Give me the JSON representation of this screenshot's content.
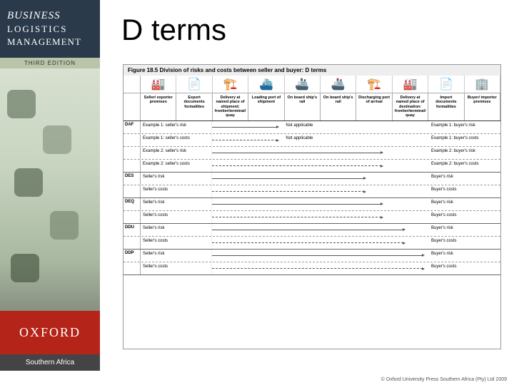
{
  "sidebar": {
    "title_line1": "BUSINESS",
    "title_line2": "LOGISTICS",
    "title_line3": "MANAGEMENT",
    "edition": "THIRD EDITION",
    "publisher": "OXFORD",
    "region": "Southern Africa"
  },
  "slide": {
    "title": "D terms"
  },
  "figure": {
    "caption": "Figure 18.5 Division of risks and costs between seller and buyer: D terms",
    "icons": [
      "🏭",
      "📄",
      "🏗️",
      "⛴️",
      "🚢",
      "🚢",
      "🏗️",
      "🏭",
      "📄",
      "🏢"
    ],
    "headers": [
      "",
      "Seller/ exporter premises",
      "Export documents formalities",
      "Delivery at named place of shipment: frontier/terminal/ quay",
      "Loading port of shipment",
      "On board ship's rail",
      "On board ship's rail",
      "Discharging port of arrival",
      "Delivery at named place of destination: frontier/terminal/ quay",
      "Import documents formalities",
      "Buyer/ importer premises"
    ],
    "na_text": "Not applicable",
    "terms": [
      {
        "code": "DAF",
        "rows": [
          {
            "l": "Example 1: seller's risk",
            "r": "Example 1: buyer's risk",
            "stop": 0.3,
            "na": true
          },
          {
            "l": "Example 1: seller's costs",
            "r": "Example 1: buyer's costs",
            "stop": 0.3,
            "na": true,
            "dash": true
          },
          {
            "l": "Example 2: seller's risk",
            "r": "Example 2: buyer's risk",
            "stop": 0.78
          },
          {
            "l": "Example 2: seller's costs",
            "r": "Example 2: buyer's costs",
            "stop": 0.78,
            "dash": true,
            "solid": true
          }
        ]
      },
      {
        "code": "DES",
        "rows": [
          {
            "l": "Seller's risk",
            "r": "Buyer's risk",
            "stop": 0.7
          },
          {
            "l": "Seller's costs",
            "r": "Buyer's costs",
            "stop": 0.7,
            "dash": true,
            "solid": true
          }
        ]
      },
      {
        "code": "DEQ",
        "rows": [
          {
            "l": "Seller's risk",
            "r": "Buyer's risk",
            "stop": 0.78
          },
          {
            "l": "Seller's costs",
            "r": "Buyer's costs",
            "stop": 0.78,
            "dash": true,
            "solid": true
          }
        ]
      },
      {
        "code": "DDU",
        "rows": [
          {
            "l": "Seller's risk",
            "r": "Buyer's risk",
            "stop": 0.88
          },
          {
            "l": "Seller's costs",
            "r": "Buyer's costs",
            "stop": 0.88,
            "dash": true,
            "solid": true
          }
        ]
      },
      {
        "code": "DDP",
        "rows": [
          {
            "l": "Seller's risk",
            "r": "Buyer's risk",
            "stop": 0.97
          },
          {
            "l": "Seller's costs",
            "r": "Buyer's costs",
            "stop": 0.97,
            "dash": true,
            "solid": true
          }
        ]
      }
    ],
    "copyright": "© Oxford University Press Southern Africa (Pty) Ltd 2009"
  },
  "colors": {
    "header_bg": "#2a3a4a",
    "oxford_red": "#b52418",
    "edition_bg": "#b8c5a8"
  }
}
